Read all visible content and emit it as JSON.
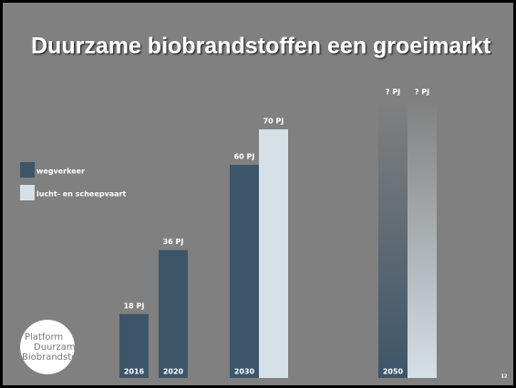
{
  "slide": {
    "title": "Duurzame biobrandstoffen een groeimarkt",
    "page_number": "12",
    "logo": [
      "Platform",
      "Duurzame",
      "Biobrandstoffen"
    ]
  },
  "chart_data": {
    "type": "bar",
    "categories": [
      "2016",
      "2020",
      "2030",
      "2050"
    ],
    "series": [
      {
        "name": "wegverkeer",
        "color": "#3d5568",
        "values": [
          18,
          36,
          60,
          null
        ],
        "value_labels": [
          "18 PJ",
          "36 PJ",
          "60 PJ",
          "? PJ"
        ]
      },
      {
        "name": "lucht- en scheepvaart",
        "color": "#d5e0e7",
        "values": [
          null,
          null,
          70,
          null
        ],
        "value_labels": [
          null,
          null,
          "70 PJ",
          "? PJ"
        ]
      }
    ],
    "ylim": [
      0,
      100
    ]
  }
}
